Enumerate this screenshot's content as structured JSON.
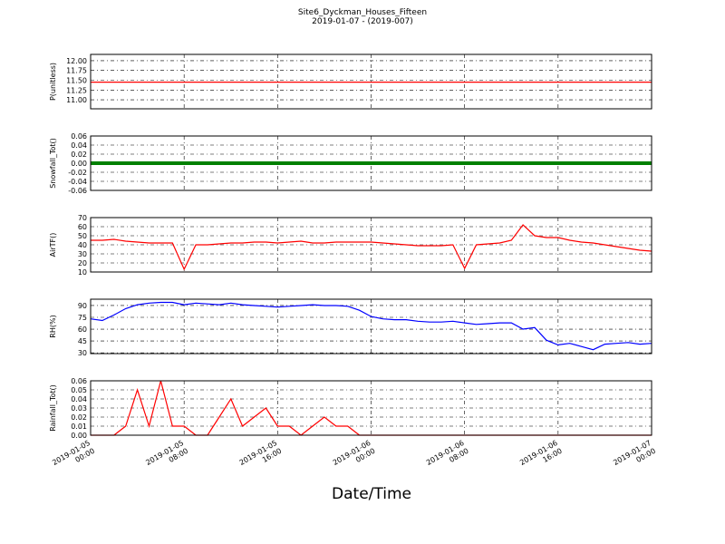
{
  "chart_data": [
    {
      "type": "line",
      "title": "Site6_Dyckman_Houses_Fifteen",
      "subtitle": "2019-01-07 - (2019-007)",
      "ylabel": "P(unitless)",
      "color": "#ff0000",
      "x": [
        "2019-01-05 00:00",
        "2019-01-05 01:00",
        "2019-01-05 02:00",
        "2019-01-05 03:00",
        "2019-01-05 04:00",
        "2019-01-05 05:00",
        "2019-01-05 06:00",
        "2019-01-05 07:00",
        "2019-01-05 08:00",
        "2019-01-05 09:00",
        "2019-01-05 10:00",
        "2019-01-05 11:00",
        "2019-01-05 12:00",
        "2019-01-05 13:00",
        "2019-01-05 14:00",
        "2019-01-05 15:00",
        "2019-01-05 16:00",
        "2019-01-05 17:00",
        "2019-01-05 18:00",
        "2019-01-05 19:00",
        "2019-01-05 20:00",
        "2019-01-05 21:00",
        "2019-01-05 22:00",
        "2019-01-05 23:00",
        "2019-01-06 00:00",
        "2019-01-06 01:00",
        "2019-01-06 02:00",
        "2019-01-06 03:00",
        "2019-01-06 04:00",
        "2019-01-06 05:00",
        "2019-01-06 06:00",
        "2019-01-06 07:00",
        "2019-01-06 08:00",
        "2019-01-06 09:00",
        "2019-01-06 10:00",
        "2019-01-06 11:00",
        "2019-01-06 12:00",
        "2019-01-06 13:00",
        "2019-01-06 14:00",
        "2019-01-06 15:00",
        "2019-01-06 16:00",
        "2019-01-06 17:00",
        "2019-01-06 18:00",
        "2019-01-06 19:00",
        "2019-01-06 20:00",
        "2019-01-06 21:00",
        "2019-01-06 22:00",
        "2019-01-06 23:00",
        "2019-01-07 00:00"
      ],
      "values": [
        11.45,
        11.45,
        11.45,
        11.45,
        11.45,
        11.45,
        11.45,
        11.45,
        11.45,
        11.45,
        11.45,
        11.45,
        11.45,
        11.45,
        11.45,
        11.45,
        11.45,
        11.45,
        11.45,
        11.45,
        11.45,
        11.45,
        11.45,
        11.45,
        11.45,
        11.45,
        11.45,
        11.45,
        11.45,
        11.45,
        11.45,
        11.45,
        11.45,
        11.45,
        11.45,
        11.45,
        11.45,
        11.45,
        11.45,
        11.45,
        11.45,
        11.45,
        11.45,
        11.45,
        11.45,
        11.45,
        11.45,
        11.45,
        11.45
      ],
      "ylim": [
        10.77,
        12.16
      ],
      "yticks": [
        {
          "value": 11,
          "label": "11.00"
        },
        11.25,
        {
          "value": 11.5,
          "label": "11.50"
        },
        11.75,
        {
          "value": 12,
          "label": "12.00"
        }
      ],
      "grid": true
    },
    {
      "type": "line",
      "ylabel": "Snowfall_Tot()",
      "color": "#008000",
      "x": [
        "2019-01-05 00:00",
        "2019-01-05 01:00",
        "2019-01-05 02:00",
        "2019-01-05 03:00",
        "2019-01-05 04:00",
        "2019-01-05 05:00",
        "2019-01-05 06:00",
        "2019-01-05 07:00",
        "2019-01-05 08:00",
        "2019-01-05 09:00",
        "2019-01-05 10:00",
        "2019-01-05 11:00",
        "2019-01-05 12:00",
        "2019-01-05 13:00",
        "2019-01-05 14:00",
        "2019-01-05 15:00",
        "2019-01-05 16:00",
        "2019-01-05 17:00",
        "2019-01-05 18:00",
        "2019-01-05 19:00",
        "2019-01-05 20:00",
        "2019-01-05 21:00",
        "2019-01-05 22:00",
        "2019-01-05 23:00",
        "2019-01-06 00:00",
        "2019-01-06 01:00",
        "2019-01-06 02:00",
        "2019-01-06 03:00",
        "2019-01-06 04:00",
        "2019-01-06 05:00",
        "2019-01-06 06:00",
        "2019-01-06 07:00",
        "2019-01-06 08:00",
        "2019-01-06 09:00",
        "2019-01-06 10:00",
        "2019-01-06 11:00",
        "2019-01-06 12:00",
        "2019-01-06 13:00",
        "2019-01-06 14:00",
        "2019-01-06 15:00",
        "2019-01-06 16:00",
        "2019-01-06 17:00",
        "2019-01-06 18:00",
        "2019-01-06 19:00",
        "2019-01-06 20:00",
        "2019-01-06 21:00",
        "2019-01-06 22:00",
        "2019-01-06 23:00",
        "2019-01-07 00:00"
      ],
      "values": [
        0,
        0,
        0,
        0,
        0,
        0,
        0,
        0,
        0,
        0,
        0,
        0,
        0,
        0,
        0,
        0,
        0,
        0,
        0,
        0,
        0,
        0,
        0,
        0,
        0,
        0,
        0,
        0,
        0,
        0,
        0,
        0,
        0,
        0,
        0,
        0,
        0,
        0,
        0,
        0,
        0,
        0,
        0,
        0,
        0,
        0,
        0,
        0,
        0
      ],
      "ylim": [
        -0.06,
        0.06
      ],
      "yticks": [
        -0.06,
        -0.04,
        -0.02,
        {
          "value": 0,
          "label": "0.00"
        },
        0.02,
        0.04,
        0.06
      ],
      "grid": true
    },
    {
      "type": "line",
      "ylabel": "AirTF()",
      "color": "#ff0000",
      "x": [
        "2019-01-05 00:00",
        "2019-01-05 01:00",
        "2019-01-05 02:00",
        "2019-01-05 03:00",
        "2019-01-05 04:00",
        "2019-01-05 05:00",
        "2019-01-05 06:00",
        "2019-01-05 07:00",
        "2019-01-05 08:00",
        "2019-01-05 09:00",
        "2019-01-05 10:00",
        "2019-01-05 11:00",
        "2019-01-05 12:00",
        "2019-01-05 13:00",
        "2019-01-05 14:00",
        "2019-01-05 15:00",
        "2019-01-05 16:00",
        "2019-01-05 17:00",
        "2019-01-05 18:00",
        "2019-01-05 19:00",
        "2019-01-05 20:00",
        "2019-01-05 21:00",
        "2019-01-05 22:00",
        "2019-01-05 23:00",
        "2019-01-06 00:00",
        "2019-01-06 01:00",
        "2019-01-06 02:00",
        "2019-01-06 03:00",
        "2019-01-06 04:00",
        "2019-01-06 05:00",
        "2019-01-06 06:00",
        "2019-01-06 07:00",
        "2019-01-06 08:00",
        "2019-01-06 09:00",
        "2019-01-06 10:00",
        "2019-01-06 11:00",
        "2019-01-06 12:00",
        "2019-01-06 13:00",
        "2019-01-06 14:00",
        "2019-01-06 15:00",
        "2019-01-06 16:00",
        "2019-01-06 17:00",
        "2019-01-06 18:00",
        "2019-01-06 19:00",
        "2019-01-06 20:00",
        "2019-01-06 21:00",
        "2019-01-06 22:00",
        "2019-01-06 23:00",
        "2019-01-07 00:00"
      ],
      "values": [
        45,
        45,
        46,
        44,
        43,
        42,
        42,
        42,
        13,
        40,
        40,
        41,
        42,
        42,
        43,
        43,
        42,
        43,
        44,
        42,
        42,
        43,
        43,
        43,
        43,
        42,
        41,
        40,
        39,
        39,
        39,
        40,
        14,
        40,
        41,
        42,
        45,
        62,
        50,
        48,
        48,
        45,
        43,
        42,
        40,
        38,
        36,
        34,
        33
      ],
      "ylim": [
        10,
        70
      ],
      "yticks": [
        10,
        20,
        30,
        40,
        50,
        60,
        70
      ],
      "grid": true
    },
    {
      "type": "line",
      "ylabel": "RH(%)",
      "color": "#0000ff",
      "x": [
        "2019-01-05 00:00",
        "2019-01-05 01:00",
        "2019-01-05 02:00",
        "2019-01-05 03:00",
        "2019-01-05 04:00",
        "2019-01-05 05:00",
        "2019-01-05 06:00",
        "2019-01-05 07:00",
        "2019-01-05 08:00",
        "2019-01-05 09:00",
        "2019-01-05 10:00",
        "2019-01-05 11:00",
        "2019-01-05 12:00",
        "2019-01-05 13:00",
        "2019-01-05 14:00",
        "2019-01-05 15:00",
        "2019-01-05 16:00",
        "2019-01-05 17:00",
        "2019-01-05 18:00",
        "2019-01-05 19:00",
        "2019-01-05 20:00",
        "2019-01-05 21:00",
        "2019-01-05 22:00",
        "2019-01-05 23:00",
        "2019-01-06 00:00",
        "2019-01-06 01:00",
        "2019-01-06 02:00",
        "2019-01-06 03:00",
        "2019-01-06 04:00",
        "2019-01-06 05:00",
        "2019-01-06 06:00",
        "2019-01-06 07:00",
        "2019-01-06 08:00",
        "2019-01-06 09:00",
        "2019-01-06 10:00",
        "2019-01-06 11:00",
        "2019-01-06 12:00",
        "2019-01-06 13:00",
        "2019-01-06 14:00",
        "2019-01-06 15:00",
        "2019-01-06 16:00",
        "2019-01-06 17:00",
        "2019-01-06 18:00",
        "2019-01-06 19:00",
        "2019-01-06 20:00",
        "2019-01-06 21:00",
        "2019-01-06 22:00",
        "2019-01-06 23:00",
        "2019-01-07 00:00"
      ],
      "values": [
        73,
        71,
        78,
        86,
        91,
        93,
        94,
        94,
        91,
        93,
        92,
        91,
        93,
        91,
        90,
        89,
        88,
        89,
        90,
        91,
        90,
        90,
        89,
        84,
        76,
        73,
        72,
        72,
        70,
        69,
        69,
        70,
        68,
        66,
        67,
        68,
        68,
        60,
        62,
        46,
        40,
        42,
        38,
        34,
        41,
        42,
        43,
        41,
        42
      ],
      "ylim": [
        29,
        98
      ],
      "yticks": [
        30,
        45,
        60,
        75,
        90
      ],
      "grid": true
    },
    {
      "type": "line",
      "ylabel": "Rainfall_Tot()",
      "xlabel": "Date/Time",
      "color": "#ff0000",
      "x": [
        "2019-01-05 00:00",
        "2019-01-05 01:00",
        "2019-01-05 02:00",
        "2019-01-05 03:00",
        "2019-01-05 04:00",
        "2019-01-05 05:00",
        "2019-01-05 06:00",
        "2019-01-05 07:00",
        "2019-01-05 08:00",
        "2019-01-05 09:00",
        "2019-01-05 10:00",
        "2019-01-05 11:00",
        "2019-01-05 12:00",
        "2019-01-05 13:00",
        "2019-01-05 14:00",
        "2019-01-05 15:00",
        "2019-01-05 16:00",
        "2019-01-05 17:00",
        "2019-01-05 18:00",
        "2019-01-05 19:00",
        "2019-01-05 20:00",
        "2019-01-05 21:00",
        "2019-01-05 22:00",
        "2019-01-05 23:00",
        "2019-01-06 00:00",
        "2019-01-06 01:00",
        "2019-01-06 02:00",
        "2019-01-06 03:00",
        "2019-01-06 04:00",
        "2019-01-06 05:00",
        "2019-01-06 06:00",
        "2019-01-06 07:00",
        "2019-01-06 08:00",
        "2019-01-06 09:00",
        "2019-01-06 10:00",
        "2019-01-06 11:00",
        "2019-01-06 12:00",
        "2019-01-06 13:00",
        "2019-01-06 14:00",
        "2019-01-06 15:00",
        "2019-01-06 16:00",
        "2019-01-06 17:00",
        "2019-01-06 18:00",
        "2019-01-06 19:00",
        "2019-01-06 20:00",
        "2019-01-06 21:00",
        "2019-01-06 22:00",
        "2019-01-06 23:00",
        "2019-01-07 00:00"
      ],
      "values": [
        0,
        0,
        0,
        0.01,
        0.05,
        0.01,
        0.06,
        0.01,
        0.01,
        0,
        0,
        0.02,
        0.04,
        0.01,
        0.02,
        0.03,
        0.01,
        0.01,
        0,
        0.01,
        0.02,
        0.01,
        0.01,
        0,
        0,
        0,
        0,
        0,
        0,
        0,
        0,
        0,
        0,
        0,
        0,
        0,
        0,
        0,
        0,
        0,
        0,
        0,
        0,
        0,
        0,
        0,
        0,
        0,
        0
      ],
      "ylim": [
        0,
        0.06
      ],
      "yticks": [
        {
          "value": 0,
          "label": "0.00"
        },
        0.01,
        0.02,
        0.03,
        0.04,
        0.05,
        0.06
      ],
      "grid": true,
      "xlim": [
        "2019-01-05 00:00",
        "2019-01-07 00:00"
      ],
      "xticks": [
        {
          "value": "2019-01-05 00:00",
          "label": "2019-01-05\n00:00"
        },
        {
          "value": "2019-01-05 08:00",
          "label": "2019-01-05\n08:00"
        },
        {
          "value": "2019-01-05 16:00",
          "label": "2019-01-05\n16:00"
        },
        {
          "value": "2019-01-06 00:00",
          "label": "2019-01-06\n00:00"
        },
        {
          "value": "2019-01-06 08:00",
          "label": "2019-01-06\n08:00"
        },
        {
          "value": "2019-01-06 16:00",
          "label": "2019-01-06\n16:00"
        },
        {
          "value": "2019-01-07 00:00",
          "label": "2019-01-07\n00:00"
        }
      ]
    }
  ]
}
